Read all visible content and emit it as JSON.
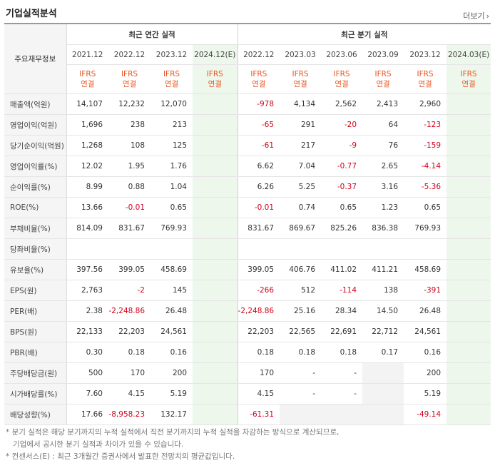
{
  "title": "기업실적분석",
  "more_label": "더보기",
  "header": {
    "row_label": "주요재무정보",
    "group_annual": "최근 연간 실적",
    "group_quarter": "최근 분기 실적",
    "annual_periods": [
      "2021.12",
      "2022.12",
      "2023.12",
      "2024.12(E)"
    ],
    "quarter_periods": [
      "2022.12",
      "2023.03",
      "2023.06",
      "2023.09",
      "2023.12",
      "2024.03(E)"
    ],
    "ifrs_top": "IFRS",
    "ifrs_bottom": "연결"
  },
  "rows": [
    {
      "label": "매출액(억원)",
      "annual": [
        "14,107",
        "12,232",
        "12,070",
        ""
      ],
      "quarter": [
        "-978",
        "4,134",
        "2,562",
        "2,413",
        "2,960",
        ""
      ]
    },
    {
      "label": "영업이익(억원)",
      "annual": [
        "1,696",
        "238",
        "213",
        ""
      ],
      "quarter": [
        "-65",
        "291",
        "-20",
        "64",
        "-123",
        ""
      ]
    },
    {
      "label": "당기순이익(억원)",
      "annual": [
        "1,268",
        "108",
        "125",
        ""
      ],
      "quarter": [
        "-61",
        "217",
        "-9",
        "76",
        "-159",
        ""
      ]
    },
    {
      "label": "영업이익률(%)",
      "annual": [
        "12.02",
        "1.95",
        "1.76",
        ""
      ],
      "quarter": [
        "6.62",
        "7.04",
        "-0.77",
        "2.65",
        "-4.14",
        ""
      ]
    },
    {
      "label": "순이익률(%)",
      "annual": [
        "8.99",
        "0.88",
        "1.04",
        ""
      ],
      "quarter": [
        "6.26",
        "5.25",
        "-0.37",
        "3.16",
        "-5.36",
        ""
      ]
    },
    {
      "label": "ROE(%)",
      "annual": [
        "13.66",
        "-0.01",
        "0.65",
        ""
      ],
      "quarter": [
        "-0.01",
        "0.74",
        "0.65",
        "1.23",
        "0.65",
        ""
      ]
    },
    {
      "label": "부채비율(%)",
      "annual": [
        "814.09",
        "831.67",
        "769.93",
        ""
      ],
      "quarter": [
        "831.67",
        "869.67",
        "825.26",
        "836.38",
        "769.93",
        ""
      ]
    },
    {
      "label": "당좌비율(%)",
      "annual": [
        "",
        "",
        "",
        ""
      ],
      "quarter": [
        "",
        "",
        "",
        "",
        "",
        ""
      ]
    },
    {
      "label": "유보율(%)",
      "annual": [
        "397.56",
        "399.05",
        "458.69",
        ""
      ],
      "quarter": [
        "399.05",
        "406.76",
        "411.02",
        "411.21",
        "458.69",
        ""
      ]
    },
    {
      "label": "EPS(원)",
      "annual": [
        "2,763",
        "-2",
        "145",
        ""
      ],
      "quarter": [
        "-266",
        "512",
        "-114",
        "138",
        "-391",
        ""
      ]
    },
    {
      "label": "PER(배)",
      "annual": [
        "2.38",
        "-2,248.86",
        "26.48",
        ""
      ],
      "quarter": [
        "-2,248.86",
        "25.16",
        "28.34",
        "14.50",
        "26.48",
        ""
      ]
    },
    {
      "label": "BPS(원)",
      "annual": [
        "22,133",
        "22,203",
        "24,561",
        ""
      ],
      "quarter": [
        "22,203",
        "22,565",
        "22,691",
        "22,712",
        "24,561",
        ""
      ]
    },
    {
      "label": "PBR(배)",
      "annual": [
        "0.30",
        "0.18",
        "0.16",
        ""
      ],
      "quarter": [
        "0.18",
        "0.18",
        "0.18",
        "0.17",
        "0.16",
        ""
      ]
    },
    {
      "label": "주당배당금(원)",
      "annual": [
        "500",
        "170",
        "200",
        ""
      ],
      "quarter": [
        "170",
        "-",
        "-",
        "",
        "200",
        ""
      ]
    },
    {
      "label": "시가배당률(%)",
      "annual": [
        "7.60",
        "4.15",
        "5.19",
        ""
      ],
      "quarter": [
        "4.15",
        "-",
        "-",
        "",
        "5.19",
        ""
      ]
    },
    {
      "label": "배당성향(%)",
      "annual": [
        "17.66",
        "-8,958.23",
        "132.17",
        ""
      ],
      "quarter": [
        "-61.31",
        "",
        "",
        "",
        "-49.14",
        ""
      ]
    }
  ],
  "notes": [
    "* 분기 실적은 해당 분기까지의 누적 실적에서 직전 분기까지의 누적 실적을 차감하는 방식으로 계산되므로,",
    "기업에서 공시한 분기 실적과 차이가 있을 수 있습니다.",
    "* 컨센서스(E) : 최근 3개월간 증권사에서 발표한 전망치의 평균값입니다."
  ]
}
